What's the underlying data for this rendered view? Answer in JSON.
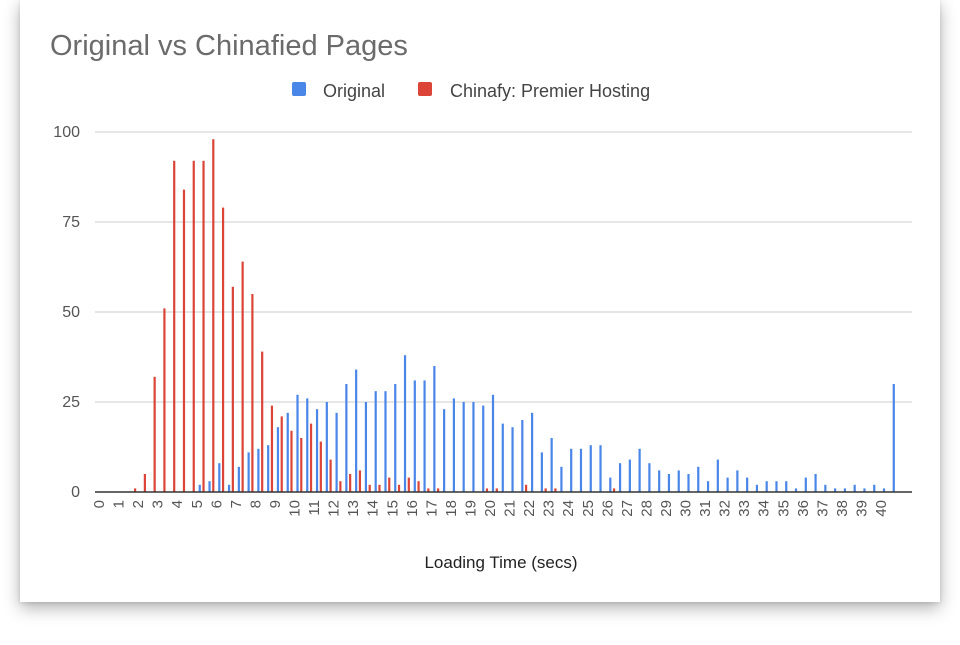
{
  "chart_data": {
    "type": "bar",
    "title": "Original vs Chinafied Pages",
    "xlabel": "Loading Time (secs)",
    "ylabel": "",
    "ylim": [
      0,
      100
    ],
    "yticks": [
      0,
      25,
      50,
      75,
      100
    ],
    "grid": true,
    "legend_position": "top",
    "x": [
      0,
      0.5,
      1,
      1.5,
      2,
      2.5,
      3,
      3.5,
      4,
      4.5,
      5,
      5.5,
      6,
      6.5,
      7,
      7.5,
      8,
      8.5,
      9,
      9.5,
      10,
      10.5,
      11,
      11.5,
      12,
      12.5,
      13,
      13.5,
      14,
      14.5,
      15,
      15.5,
      16,
      16.5,
      17,
      17.5,
      18,
      18.5,
      19,
      19.5,
      20,
      20.5,
      21,
      21.5,
      22,
      22.5,
      23,
      23.5,
      24,
      24.5,
      25,
      25.5,
      26,
      26.5,
      27,
      27.5,
      28,
      28.5,
      29,
      29.5,
      30,
      30.5,
      31,
      31.5,
      32,
      32.5,
      33,
      33.5,
      34,
      34.5,
      35,
      35.5,
      36,
      36.5,
      37,
      37.5,
      38,
      38.5,
      39,
      39.5,
      40,
      40.5
    ],
    "xtick_labels": [
      "0",
      "1",
      "2",
      "3",
      "4",
      "5",
      "6",
      "7",
      "8",
      "9",
      "10",
      "11",
      "12",
      "13",
      "14",
      "15",
      "16",
      "17",
      "18",
      "19",
      "20",
      "21",
      "22",
      "23",
      "24",
      "25",
      "26",
      "27",
      "28",
      "29",
      "30",
      "31",
      "32",
      "33",
      "34",
      "35",
      "36",
      "37",
      "38",
      "39",
      "40"
    ],
    "series": [
      {
        "name": "Original",
        "color": "#4a86e8",
        "values": [
          0,
          0,
          0,
          0,
          0,
          0,
          0,
          0,
          0,
          0,
          2,
          3,
          8,
          2,
          7,
          11,
          12,
          13,
          18,
          22,
          27,
          26,
          23,
          25,
          22,
          30,
          34,
          25,
          28,
          28,
          30,
          38,
          31,
          31,
          35,
          23,
          26,
          25,
          25,
          24,
          27,
          19,
          18,
          20,
          22,
          11,
          15,
          7,
          12,
          12,
          13,
          13,
          4,
          8,
          9,
          12,
          8,
          6,
          5,
          6,
          5,
          7,
          3,
          9,
          4,
          6,
          4,
          2,
          3,
          3,
          3,
          1,
          4,
          5,
          2,
          1,
          1,
          2,
          1,
          2,
          1,
          30
        ]
      },
      {
        "name": "Chinafy: Premier Hosting",
        "color": "#db4437",
        "values": [
          0,
          0,
          0,
          0,
          1,
          5,
          32,
          51,
          92,
          84,
          92,
          92,
          98,
          79,
          57,
          64,
          55,
          39,
          24,
          21,
          17,
          15,
          19,
          14,
          9,
          3,
          5,
          6,
          2,
          2,
          4,
          2,
          4,
          3,
          1,
          1,
          0,
          0,
          0,
          0,
          1,
          1,
          0,
          0,
          2,
          0,
          1,
          1,
          0,
          0,
          0,
          0,
          0,
          1,
          0,
          0,
          0,
          0,
          0,
          0,
          0,
          0,
          0,
          0,
          0,
          0,
          0,
          0,
          0,
          0,
          0,
          0,
          0,
          0,
          0,
          0,
          0,
          0,
          0,
          0,
          0,
          0
        ]
      }
    ]
  }
}
